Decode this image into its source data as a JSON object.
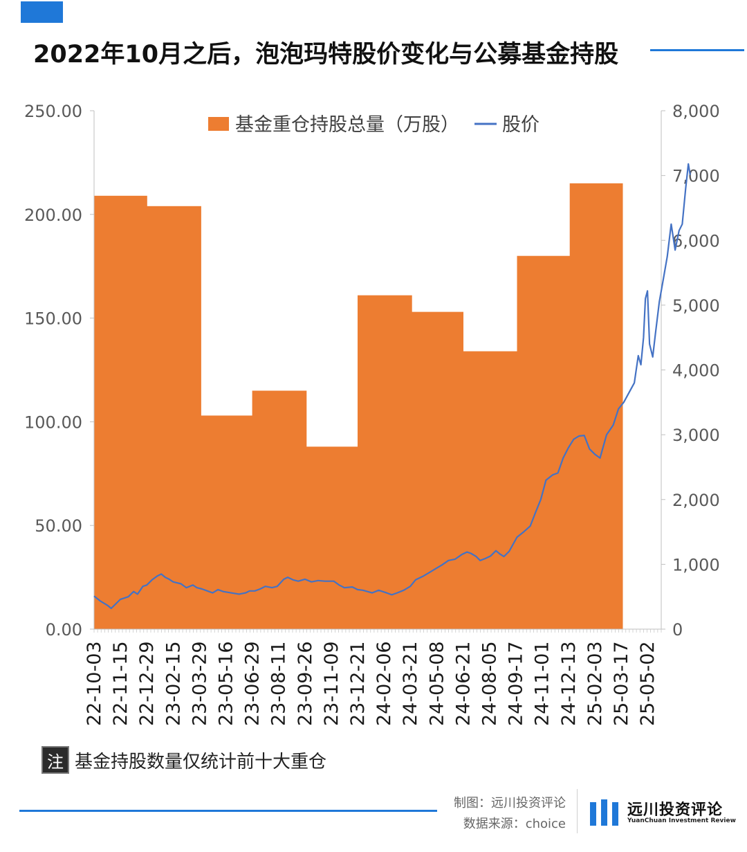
{
  "header": {
    "title": "2022年10月之后，泡泡玛特股价变化与公募基金持股",
    "accent_color": "#1f78d8"
  },
  "chart_data": {
    "type": "bar+line",
    "title": "2022年10月之后，泡泡玛特股价变化与公募基金持股",
    "legend": {
      "position": "top-center",
      "bar_label": "基金重仓持股总量（万股）",
      "line_label": "股价"
    },
    "colors": {
      "bar": "#ed7d31",
      "line": "#4472c4"
    },
    "left_axis": {
      "min": 0,
      "max": 250,
      "ticks": [
        "0.00",
        "50.00",
        "100.00",
        "150.00",
        "200.00",
        "250.00"
      ]
    },
    "right_axis": {
      "min": 0,
      "max": 8000,
      "ticks": [
        "0",
        "1,000",
        "2,000",
        "3,000",
        "4,000",
        "5,000",
        "6,000",
        "7,000",
        "8,000"
      ]
    },
    "x_tick_labels": [
      "22-10-03",
      "22-11-15",
      "22-12-29",
      "23-02-15",
      "23-03-29",
      "23-05-16",
      "23-06-29",
      "23-08-11",
      "23-09-26",
      "23-11-09",
      "23-12-21",
      "24-02-06",
      "24-03-21",
      "24-05-08",
      "24-06-21",
      "24-08-05",
      "24-09-17",
      "24-11-01",
      "24-12-13",
      "25-02-03",
      "25-03-17",
      "25-05-02"
    ],
    "holdings": {
      "name": "基金重仓持股总量（万股）",
      "periods": [
        {
          "from": 0.0,
          "to": 2.0,
          "value": 209
        },
        {
          "from": 2.0,
          "to": 4.05,
          "value": 204
        },
        {
          "from": 4.05,
          "to": 6.0,
          "value": 103
        },
        {
          "from": 6.0,
          "to": 8.05,
          "value": 115
        },
        {
          "from": 8.05,
          "to": 10.0,
          "value": 88
        },
        {
          "from": 10.0,
          "to": 12.05,
          "value": 161
        },
        {
          "from": 12.05,
          "to": 14.0,
          "value": 153
        },
        {
          "from": 14.0,
          "to": 16.05,
          "value": 134
        },
        {
          "from": 16.05,
          "to": 18.05,
          "value": 180
        },
        {
          "from": 18.05,
          "to": 20.05,
          "value": 215
        }
      ]
    },
    "price": {
      "name": "股价",
      "points": [
        [
          0.0,
          510
        ],
        [
          0.25,
          430
        ],
        [
          0.5,
          370
        ],
        [
          0.65,
          320
        ],
        [
          0.8,
          380
        ],
        [
          1.0,
          460
        ],
        [
          1.3,
          500
        ],
        [
          1.5,
          580
        ],
        [
          1.65,
          540
        ],
        [
          1.85,
          660
        ],
        [
          2.0,
          680
        ],
        [
          2.2,
          760
        ],
        [
          2.4,
          820
        ],
        [
          2.55,
          850
        ],
        [
          2.7,
          800
        ],
        [
          2.85,
          770
        ],
        [
          3.0,
          730
        ],
        [
          3.3,
          700
        ],
        [
          3.5,
          640
        ],
        [
          3.75,
          680
        ],
        [
          3.9,
          640
        ],
        [
          4.1,
          620
        ],
        [
          4.3,
          590
        ],
        [
          4.5,
          560
        ],
        [
          4.7,
          610
        ],
        [
          4.9,
          580
        ],
        [
          5.2,
          560
        ],
        [
          5.5,
          540
        ],
        [
          5.75,
          560
        ],
        [
          5.9,
          590
        ],
        [
          6.1,
          590
        ],
        [
          6.3,
          620
        ],
        [
          6.5,
          660
        ],
        [
          6.75,
          640
        ],
        [
          6.95,
          660
        ],
        [
          7.2,
          770
        ],
        [
          7.35,
          800
        ],
        [
          7.55,
          760
        ],
        [
          7.75,
          740
        ],
        [
          8.0,
          770
        ],
        [
          8.25,
          730
        ],
        [
          8.5,
          750
        ],
        [
          8.75,
          740
        ],
        [
          9.1,
          740
        ],
        [
          9.3,
          680
        ],
        [
          9.5,
          640
        ],
        [
          9.8,
          650
        ],
        [
          10.0,
          610
        ],
        [
          10.2,
          600
        ],
        [
          10.55,
          560
        ],
        [
          10.8,
          600
        ],
        [
          11.1,
          560
        ],
        [
          11.3,
          530
        ],
        [
          11.5,
          560
        ],
        [
          11.75,
          600
        ],
        [
          12.0,
          660
        ],
        [
          12.2,
          760
        ],
        [
          12.5,
          820
        ],
        [
          12.75,
          880
        ],
        [
          12.95,
          930
        ],
        [
          13.2,
          990
        ],
        [
          13.45,
          1060
        ],
        [
          13.7,
          1080
        ],
        [
          13.95,
          1150
        ],
        [
          14.15,
          1190
        ],
        [
          14.3,
          1170
        ],
        [
          14.5,
          1120
        ],
        [
          14.65,
          1060
        ],
        [
          14.85,
          1090
        ],
        [
          15.05,
          1130
        ],
        [
          15.25,
          1210
        ],
        [
          15.4,
          1160
        ],
        [
          15.55,
          1120
        ],
        [
          15.75,
          1200
        ],
        [
          15.9,
          1310
        ],
        [
          16.05,
          1420
        ],
        [
          16.3,
          1500
        ],
        [
          16.55,
          1590
        ],
        [
          16.75,
          1800
        ],
        [
          16.95,
          2000
        ],
        [
          17.15,
          2300
        ],
        [
          17.4,
          2380
        ],
        [
          17.6,
          2410
        ],
        [
          17.8,
          2640
        ],
        [
          18.0,
          2800
        ],
        [
          18.2,
          2930
        ],
        [
          18.4,
          2980
        ],
        [
          18.6,
          2990
        ],
        [
          18.8,
          2780
        ],
        [
          19.0,
          2700
        ],
        [
          19.2,
          2640
        ],
        [
          19.45,
          3000
        ],
        [
          19.7,
          3150
        ],
        [
          19.9,
          3400
        ],
        [
          20.1,
          3500
        ],
        [
          20.3,
          3650
        ],
        [
          20.5,
          3800
        ],
        [
          20.65,
          4220
        ],
        [
          20.75,
          4080
        ],
        [
          20.85,
          4500
        ],
        [
          20.92,
          5100
        ],
        [
          21.0,
          5220
        ],
        [
          21.08,
          4400
        ],
        [
          21.2,
          4200
        ],
        [
          21.3,
          4550
        ],
        [
          21.45,
          5050
        ],
        [
          21.6,
          5400
        ],
        [
          21.75,
          5750
        ],
        [
          21.9,
          6250
        ],
        [
          22.05,
          5850
        ],
        [
          22.2,
          6150
        ],
        [
          22.32,
          6250
        ],
        [
          22.45,
          6800
        ],
        [
          22.55,
          7180
        ],
        [
          22.62,
          7010
        ]
      ]
    }
  },
  "note": {
    "badge": "注",
    "text": "基金持股数量仅统计前十大重仓"
  },
  "footer": {
    "credit_maker": "制图：远川投资评论",
    "credit_source": "数据来源：choice",
    "brand_name": "远川投资评论",
    "brand_sub": "YuanChuan Investment Review"
  }
}
